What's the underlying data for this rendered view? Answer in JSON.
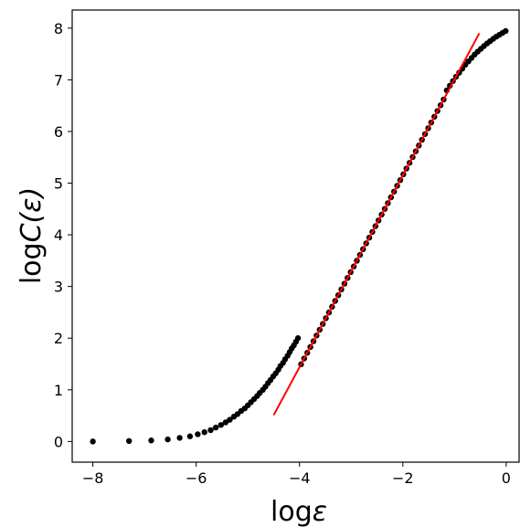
{
  "chart_data": {
    "type": "scatter",
    "xlabel_base": "log",
    "xlabel_symbol": "ε",
    "ylabel_base": "log",
    "ylabel_symbol": "C(ε)",
    "xlim": [
      -8.4,
      0.25
    ],
    "ylim": [
      -0.4,
      8.35
    ],
    "xticks": [
      -8,
      -6,
      -4,
      -2,
      0
    ],
    "yticks": [
      0,
      1,
      2,
      3,
      4,
      5,
      6,
      7,
      8
    ],
    "xtick_labels": [
      "−8",
      "−6",
      "−4",
      "−2",
      "0"
    ],
    "ytick_labels": [
      "0",
      "1",
      "2",
      "3",
      "4",
      "5",
      "6",
      "7",
      "8"
    ],
    "grid": false,
    "point_color": "#000000",
    "fit_color": "#ff0000",
    "points": {
      "x": [
        -8.0,
        -7.3,
        -6.87,
        -6.55,
        -6.32,
        -6.12,
        -5.97,
        -5.84,
        -5.72,
        -5.62,
        -5.52,
        -5.43,
        -5.35,
        -5.27,
        -5.2,
        -5.13,
        -5.06,
        -5.0,
        -4.94,
        -4.88,
        -4.82,
        -4.77,
        -4.71,
        -4.66,
        -4.61,
        -4.56,
        -4.51,
        -4.46,
        -4.41,
        -4.37,
        -4.32,
        -4.28,
        -4.23,
        -4.19,
        -4.15,
        -4.11,
        -4.07,
        -4.03
      ],
      "y": [
        0.0,
        0.01,
        0.02,
        0.04,
        0.07,
        0.1,
        0.14,
        0.18,
        0.22,
        0.27,
        0.32,
        0.37,
        0.42,
        0.48,
        0.53,
        0.59,
        0.64,
        0.7,
        0.76,
        0.82,
        0.88,
        0.94,
        1.0,
        1.06,
        1.13,
        1.19,
        1.26,
        1.32,
        1.39,
        1.46,
        1.52,
        1.59,
        1.66,
        1.73,
        1.8,
        1.86,
        1.93,
        2.0
      ],
      "x_dense_start": -3.97,
      "x_dense_end": 0.0,
      "x_dense_step": 0.06,
      "dense_y_at": {
        "x": [
          -3.97,
          -1.2,
          -1.0,
          -0.8,
          -0.6,
          -0.4,
          -0.2,
          0.0
        ],
        "y": [
          2.1,
          6.72,
          7.02,
          7.28,
          7.5,
          7.68,
          7.83,
          7.95
        ]
      }
    },
    "fit_line": {
      "x": [
        -4.5,
        -0.52
      ],
      "y": [
        0.51,
        7.9
      ]
    }
  }
}
